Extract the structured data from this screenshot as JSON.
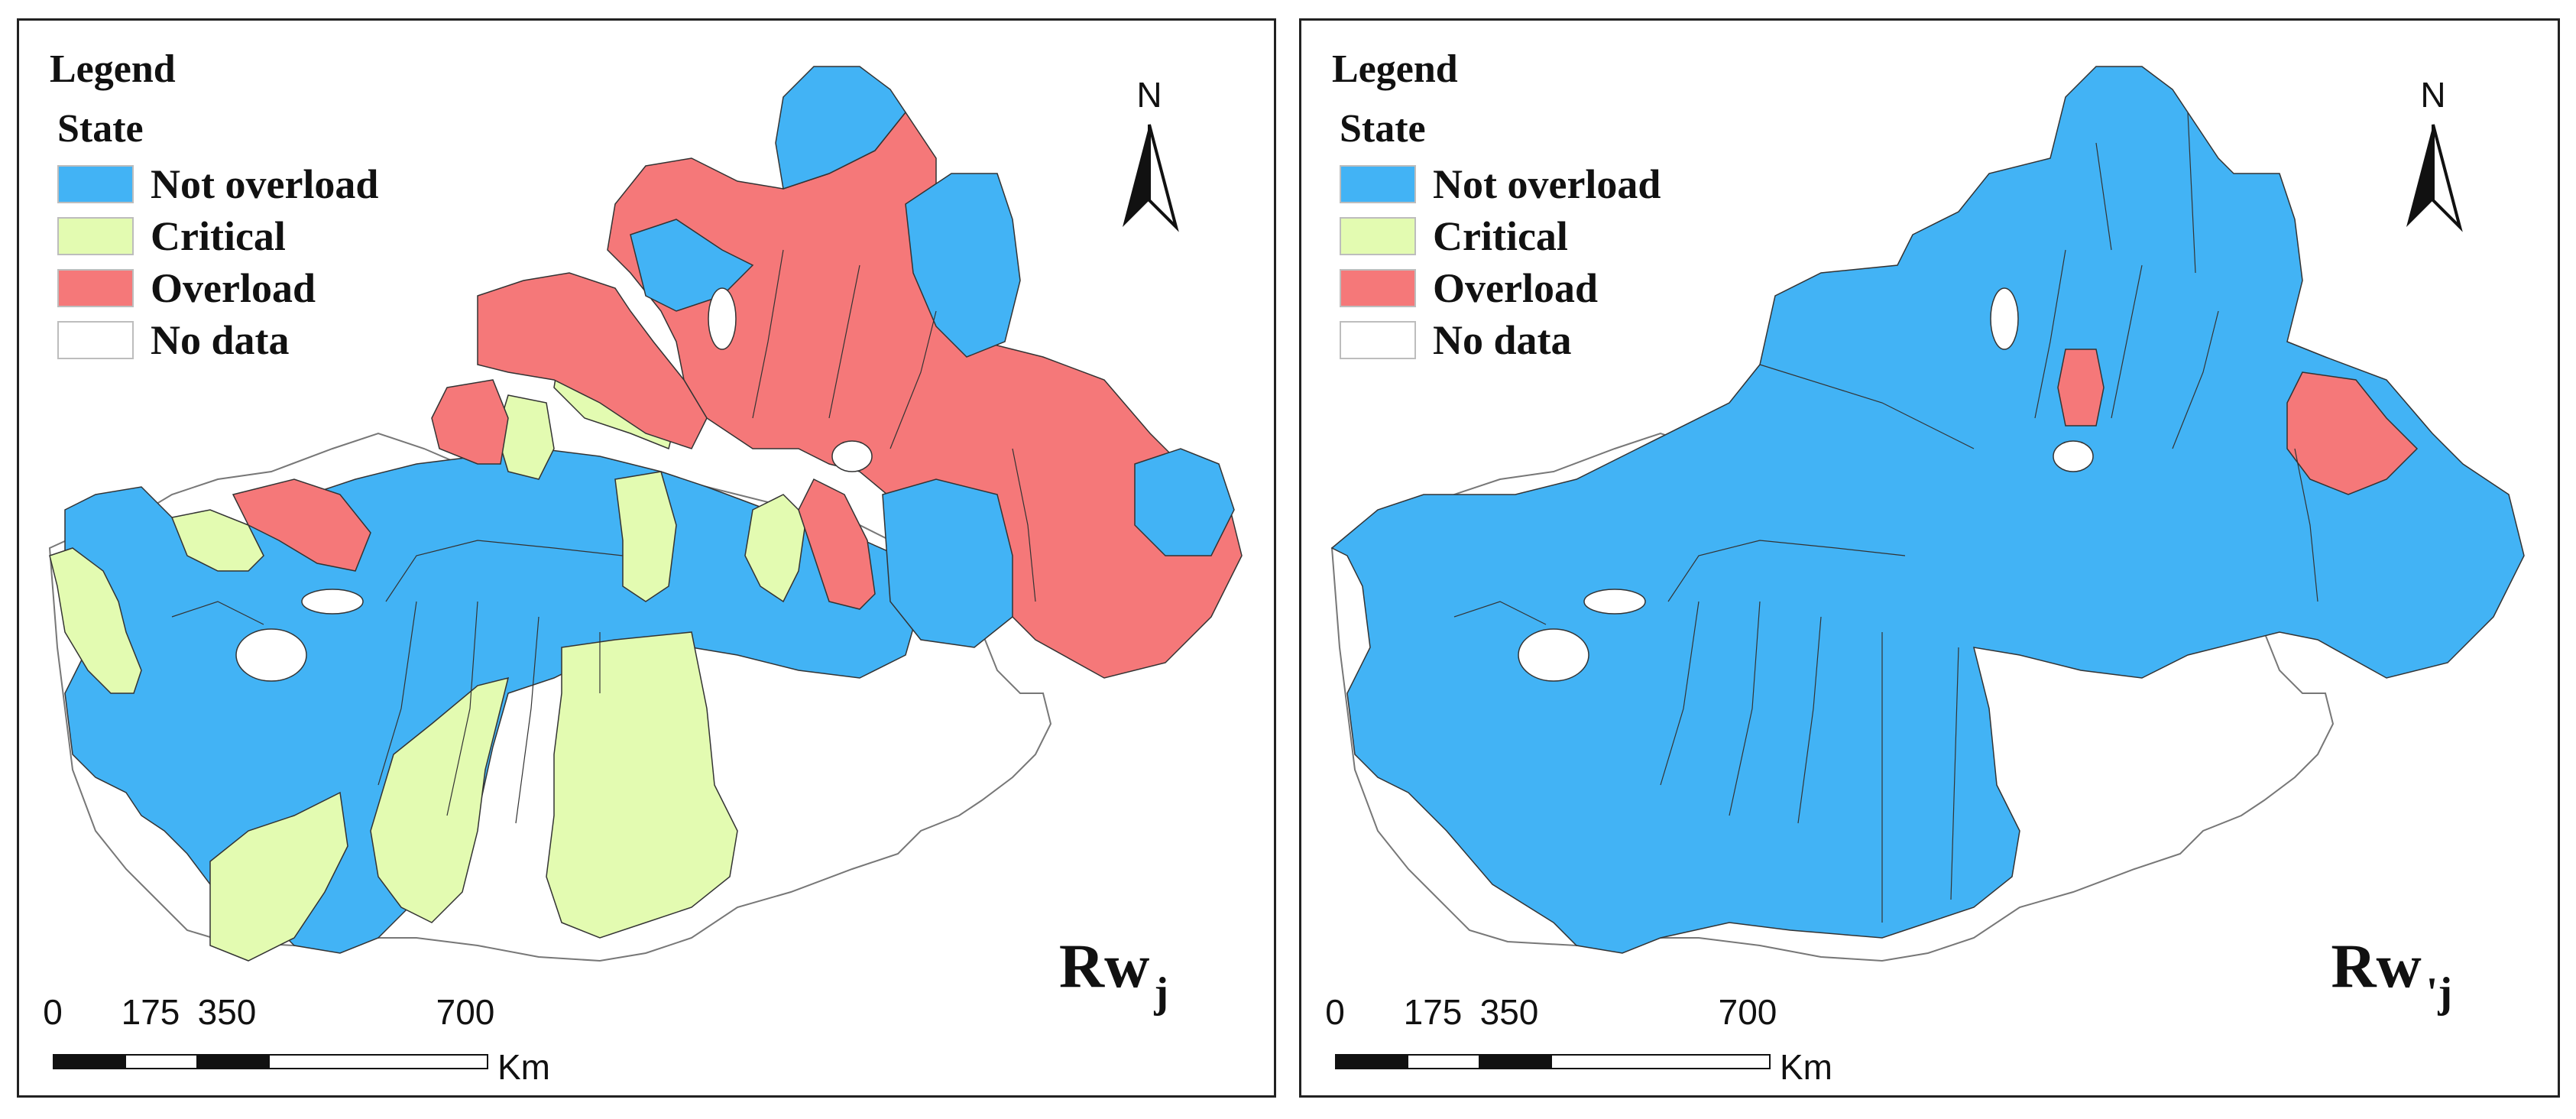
{
  "colors": {
    "not_overload": "#42b3f5",
    "critical": "#e3fbb1",
    "overload": "#f57879",
    "no_data": "#ffffff",
    "boundary": "#333333"
  },
  "legend": {
    "title": "Legend",
    "subtitle": "State",
    "items": [
      {
        "label": "Not overload",
        "color": "#42b3f5"
      },
      {
        "label": "Critical",
        "color": "#e3fbb1"
      },
      {
        "label": "Overload",
        "color": "#f57879"
      },
      {
        "label": "No data",
        "color": "#ffffff"
      }
    ]
  },
  "north_arrow": {
    "label": "N"
  },
  "scale_bar": {
    "ticks": [
      "0",
      "175",
      "350",
      "700"
    ],
    "unit": "Km"
  },
  "panels": [
    {
      "label_main": "Rw",
      "label_sub": "j"
    },
    {
      "label_main": "Rw",
      "label_sub": "'j"
    }
  ]
}
